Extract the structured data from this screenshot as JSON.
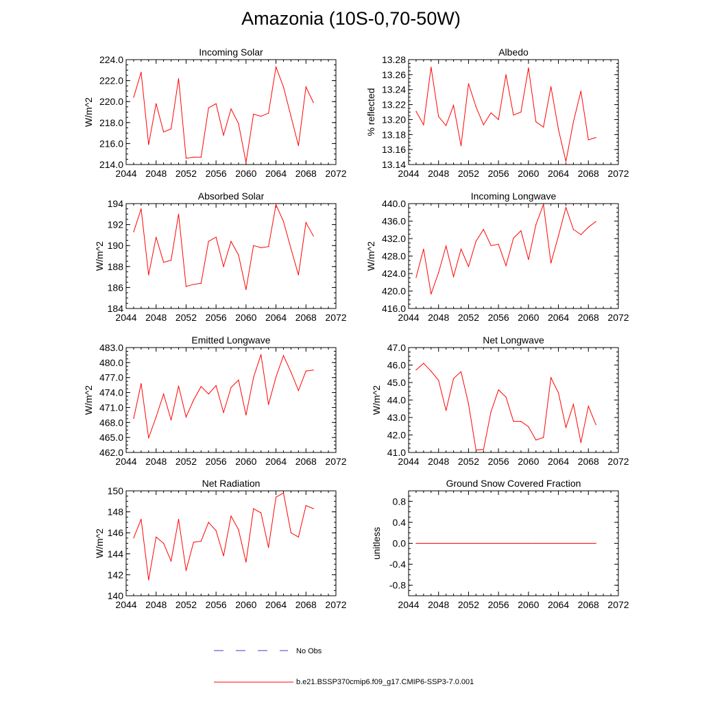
{
  "title": "Amazonia (10S-0,70-50W)",
  "legend": {
    "obs_label": "No Obs",
    "obs_color": "#3b3bd6",
    "model_label": "b.e21.BSSP370cmip6.f09_g17.CMIP6-SSP3-7.0.001",
    "model_color": "#ff0000"
  },
  "chart_data": [
    {
      "type": "line",
      "title": "Incoming Solar",
      "ylabel": "W/m^2",
      "xlim": [
        2044,
        2072
      ],
      "ylim": [
        214,
        224
      ],
      "xticks": [
        2044,
        2048,
        2052,
        2056,
        2060,
        2064,
        2068,
        2072
      ],
      "yticks": [
        214,
        216,
        218,
        220,
        222,
        224
      ],
      "ytick_decimals": 1,
      "x": [
        2045,
        2046,
        2047,
        2048,
        2049,
        2050,
        2051,
        2052,
        2053,
        2054,
        2055,
        2056,
        2057,
        2058,
        2059,
        2060,
        2061,
        2062,
        2063,
        2064,
        2065,
        2066,
        2067,
        2068,
        2069
      ],
      "series": [
        {
          "values": [
            220.4,
            222.8,
            215.9,
            219.8,
            217.1,
            217.4,
            222.2,
            214.6,
            214.7,
            214.7,
            219.4,
            219.8,
            216.8,
            219.3,
            217.9,
            214.2,
            218.8,
            218.6,
            218.9,
            223.3,
            221.4,
            218.6,
            215.8,
            221.4,
            219.9
          ]
        }
      ]
    },
    {
      "type": "line",
      "title": "Albedo",
      "ylabel": "% reflected",
      "xlim": [
        2044,
        2072
      ],
      "ylim": [
        13.14,
        13.28
      ],
      "xticks": [
        2044,
        2048,
        2052,
        2056,
        2060,
        2064,
        2068,
        2072
      ],
      "yticks": [
        13.14,
        13.16,
        13.18,
        13.2,
        13.22,
        13.24,
        13.26,
        13.28
      ],
      "ytick_decimals": 2,
      "x": [
        2045,
        2046,
        2047,
        2048,
        2049,
        2050,
        2051,
        2052,
        2053,
        2054,
        2055,
        2056,
        2057,
        2058,
        2059,
        2060,
        2061,
        2062,
        2063,
        2064,
        2065,
        2066,
        2067,
        2068,
        2069
      ],
      "series": [
        {
          "values": [
            13.211,
            13.193,
            13.27,
            13.204,
            13.192,
            13.219,
            13.165,
            13.248,
            13.217,
            13.193,
            13.209,
            13.2,
            13.26,
            13.206,
            13.21,
            13.269,
            13.197,
            13.19,
            13.244,
            13.187,
            13.144,
            13.197,
            13.238,
            13.173,
            13.176
          ]
        }
      ]
    },
    {
      "type": "line",
      "title": "Absorbed Solar",
      "ylabel": "W/m^2",
      "xlim": [
        2044,
        2072
      ],
      "ylim": [
        184,
        194
      ],
      "xticks": [
        2044,
        2048,
        2052,
        2056,
        2060,
        2064,
        2068,
        2072
      ],
      "yticks": [
        184,
        186,
        188,
        190,
        192,
        194
      ],
      "ytick_decimals": 0,
      "x": [
        2045,
        2046,
        2047,
        2048,
        2049,
        2050,
        2051,
        2052,
        2053,
        2054,
        2055,
        2056,
        2057,
        2058,
        2059,
        2060,
        2061,
        2062,
        2063,
        2064,
        2065,
        2066,
        2067,
        2068,
        2069
      ],
      "series": [
        {
          "values": [
            191.3,
            193.5,
            187.2,
            190.8,
            188.4,
            188.6,
            193.0,
            186.1,
            186.3,
            186.4,
            190.4,
            190.8,
            188.0,
            190.4,
            189.1,
            185.8,
            190.0,
            189.8,
            189.9,
            193.9,
            192.3,
            189.7,
            187.2,
            192.2,
            190.9
          ]
        }
      ]
    },
    {
      "type": "line",
      "title": "Incoming Longwave",
      "ylabel": "W/m^2",
      "xlim": [
        2044,
        2072
      ],
      "ylim": [
        416,
        440
      ],
      "xticks": [
        2044,
        2048,
        2052,
        2056,
        2060,
        2064,
        2068,
        2072
      ],
      "yticks": [
        416,
        420,
        424,
        428,
        432,
        436,
        440
      ],
      "ytick_decimals": 1,
      "x": [
        2045,
        2046,
        2047,
        2048,
        2049,
        2050,
        2051,
        2052,
        2053,
        2054,
        2055,
        2056,
        2057,
        2058,
        2059,
        2060,
        2061,
        2062,
        2063,
        2064,
        2065,
        2066,
        2067,
        2068,
        2069
      ],
      "series": [
        {
          "values": [
            423.1,
            429.6,
            419.3,
            424.2,
            430.3,
            423.3,
            429.6,
            425.6,
            431.4,
            434.1,
            430.4,
            430.7,
            425.8,
            432.1,
            433.8,
            427.2,
            435.2,
            439.8,
            426.4,
            432.6,
            439.1,
            434.1,
            432.9,
            434.6,
            435.9
          ]
        }
      ]
    },
    {
      "type": "line",
      "title": "Emitted Longwave",
      "ylabel": "W/m^2",
      "xlim": [
        2044,
        2072
      ],
      "ylim": [
        462,
        483
      ],
      "xticks": [
        2044,
        2048,
        2052,
        2056,
        2060,
        2064,
        2068,
        2072
      ],
      "yticks": [
        462,
        465,
        468,
        471,
        474,
        477,
        480,
        483
      ],
      "ytick_decimals": 1,
      "x": [
        2045,
        2046,
        2047,
        2048,
        2049,
        2050,
        2051,
        2052,
        2053,
        2054,
        2055,
        2056,
        2057,
        2058,
        2059,
        2060,
        2061,
        2062,
        2063,
        2064,
        2065,
        2066,
        2067,
        2068,
        2069
      ],
      "series": [
        {
          "values": [
            468.8,
            475.8,
            464.9,
            469.1,
            473.7,
            468.5,
            475.3,
            469.1,
            472.5,
            475.2,
            473.7,
            475.4,
            470.0,
            475.0,
            476.5,
            469.5,
            477.0,
            481.6,
            471.6,
            477.1,
            481.4,
            478.1,
            474.4,
            478.3,
            478.5
          ]
        }
      ]
    },
    {
      "type": "line",
      "title": "Net Longwave",
      "ylabel": "W/m^2",
      "xlim": [
        2044,
        2072
      ],
      "ylim": [
        41,
        47
      ],
      "xticks": [
        2044,
        2048,
        2052,
        2056,
        2060,
        2064,
        2068,
        2072
      ],
      "yticks": [
        41,
        42,
        43,
        44,
        45,
        46,
        47
      ],
      "ytick_decimals": 1,
      "x": [
        2045,
        2046,
        2047,
        2048,
        2049,
        2050,
        2051,
        2052,
        2053,
        2054,
        2055,
        2056,
        2057,
        2058,
        2059,
        2060,
        2061,
        2062,
        2063,
        2064,
        2065,
        2066,
        2067,
        2068,
        2069
      ],
      "series": [
        {
          "values": [
            45.72,
            46.1,
            45.65,
            45.13,
            43.4,
            45.23,
            45.62,
            43.78,
            41.14,
            41.17,
            43.33,
            44.58,
            44.17,
            42.78,
            42.78,
            42.47,
            41.71,
            41.86,
            45.28,
            44.41,
            42.43,
            43.75,
            41.57,
            43.65,
            42.59
          ]
        }
      ]
    },
    {
      "type": "line",
      "title": "Net Radiation",
      "ylabel": "W/m^2",
      "xlim": [
        2044,
        2072
      ],
      "ylim": [
        140,
        150
      ],
      "xticks": [
        2044,
        2048,
        2052,
        2056,
        2060,
        2064,
        2068,
        2072
      ],
      "yticks": [
        140,
        142,
        144,
        146,
        148,
        150
      ],
      "ytick_decimals": 0,
      "x": [
        2045,
        2046,
        2047,
        2048,
        2049,
        2050,
        2051,
        2052,
        2053,
        2054,
        2055,
        2056,
        2057,
        2058,
        2059,
        2060,
        2061,
        2062,
        2063,
        2064,
        2065,
        2066,
        2067,
        2068,
        2069
      ],
      "series": [
        {
          "values": [
            145.5,
            147.3,
            141.5,
            145.6,
            145.0,
            143.3,
            147.3,
            142.4,
            145.1,
            145.2,
            147.0,
            146.2,
            143.8,
            147.6,
            146.3,
            143.2,
            148.3,
            147.9,
            144.6,
            149.4,
            149.8,
            146.0,
            145.6,
            148.6,
            148.3
          ]
        }
      ]
    },
    {
      "type": "line",
      "title": "Ground Snow Covered Fraction",
      "ylabel": "unitless",
      "xlim": [
        2044,
        2072
      ],
      "ylim": [
        -1.0,
        1.0
      ],
      "xticks": [
        2044,
        2048,
        2052,
        2056,
        2060,
        2064,
        2068,
        2072
      ],
      "yticks": [
        -0.8,
        -0.4,
        0.0,
        0.4,
        0.8
      ],
      "ytick_decimals": 1,
      "x": [
        2045,
        2046,
        2047,
        2048,
        2049,
        2050,
        2051,
        2052,
        2053,
        2054,
        2055,
        2056,
        2057,
        2058,
        2059,
        2060,
        2061,
        2062,
        2063,
        2064,
        2065,
        2066,
        2067,
        2068,
        2069
      ],
      "series": [
        {
          "values": [
            0,
            0,
            0,
            0,
            0,
            0,
            0,
            0,
            0,
            0,
            0,
            0,
            0,
            0,
            0,
            0,
            0,
            0,
            0,
            0,
            0,
            0,
            0,
            0,
            0
          ]
        }
      ]
    }
  ]
}
